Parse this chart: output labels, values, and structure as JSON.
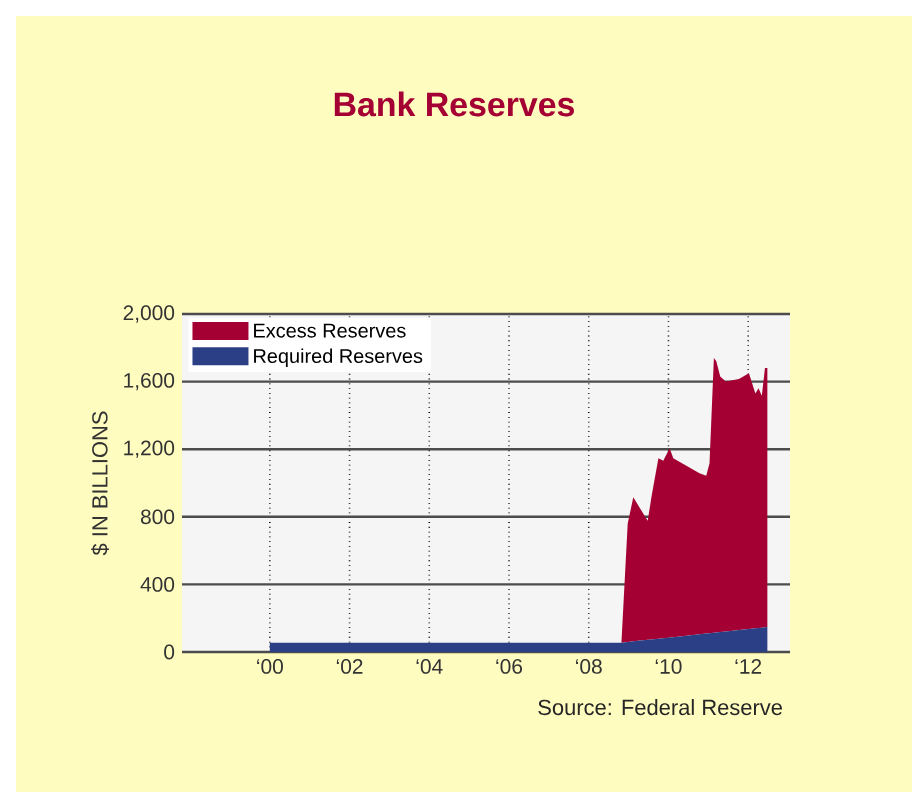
{
  "chart_data": {
    "type": "area",
    "title": "Bank Reserves",
    "ylabel": "$ IN BILLIONS",
    "annotations": [
      "Source: Federal Reserve"
    ],
    "stacked": true,
    "x": [
      "2000-01-01",
      "2008-10-27",
      "2008-12-24",
      "2009-02-13",
      "2009-06-25",
      "2009-07-31",
      "2009-10-01",
      "2009-11-14",
      "2010-01-12",
      "2010-02-14",
      "2010-10-12",
      "2010-12-13",
      "2011-01-12",
      "2011-02-21",
      "2011-03-15",
      "2011-04-20",
      "2011-06-10",
      "2011-10-08",
      "2012-01-08",
      "2012-03-07",
      "2012-04-05",
      "2012-05-05",
      "2012-06-03",
      "2012-06-25"
    ],
    "series": [
      {
        "name": "Required Reserves",
        "color": "#2b3f86",
        "values": [
          55,
          55,
          59,
          63,
          72,
          74,
          79,
          82,
          86,
          88,
          105,
          109,
          111,
          114,
          115,
          118,
          122,
          130,
          136,
          140,
          142,
          144,
          146,
          148
        ]
      },
      {
        "name": "Excess Reserves",
        "color": "#a50034",
        "values": [
          0,
          0,
          702,
          852,
          704,
          850,
          1068,
          1050,
          1120,
          1059,
          953,
          934,
          1006,
          1626,
          1605,
          1512,
          1478,
          1485,
          1514,
          1390,
          1418,
          1373,
          1534,
          1532
        ]
      }
    ],
    "xlim": [
      "1997-10-19",
      "2013-01-19"
    ],
    "ylim": [
      0,
      2000
    ],
    "xticks": [
      {
        "value": "2000",
        "label": "‘00"
      },
      {
        "value": "2002",
        "label": "‘02"
      },
      {
        "value": "2004",
        "label": "‘04"
      },
      {
        "value": "2006",
        "label": "‘06"
      },
      {
        "value": "2008",
        "label": "‘08"
      },
      {
        "value": "2010",
        "label": "‘10"
      },
      {
        "value": "2012",
        "label": "‘12"
      }
    ],
    "yticks": [
      0,
      {
        "value": 400,
        "label": "400"
      },
      {
        "value": 800,
        "label": "800"
      },
      {
        "value": 1200,
        "label": "1,200"
      },
      {
        "value": 1600,
        "label": "1,600"
      },
      {
        "value": 2000,
        "label": "2,000"
      }
    ],
    "grid": true,
    "legend": "top left"
  }
}
